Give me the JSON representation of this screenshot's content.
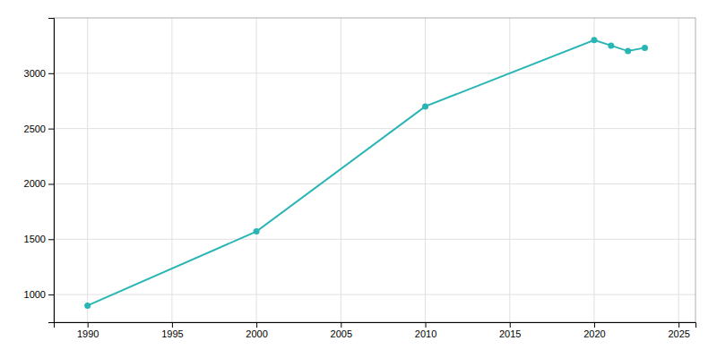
{
  "chart_data": {
    "type": "line",
    "x": [
      1990,
      2000,
      2010,
      2020,
      2021,
      2022,
      2023
    ],
    "values": [
      900,
      1570,
      2700,
      3300,
      3250,
      3200,
      3230
    ],
    "color": "#2ab5b5",
    "marker": "circle",
    "xlim": [
      1988,
      2026
    ],
    "ylim": [
      750,
      3500
    ],
    "xticks": [
      1990,
      1995,
      2000,
      2005,
      2010,
      2015,
      2020,
      2025
    ],
    "yticks": [
      1000,
      1500,
      2000,
      2500,
      3000
    ],
    "grid": true
  }
}
